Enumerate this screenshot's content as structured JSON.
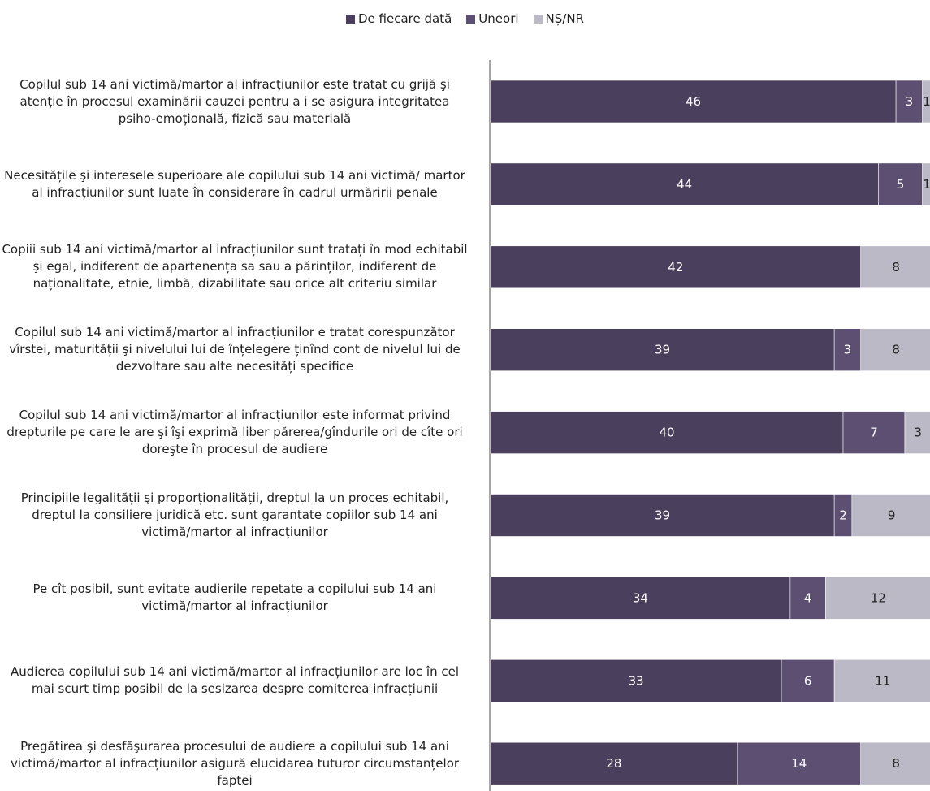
{
  "chart_data": {
    "type": "bar",
    "orientation": "horizontal",
    "stacked": true,
    "legend_position": "top",
    "categories": [
      "Copilul sub 14 ani victimă/martor al infracțiunilor este tratat cu grijă şi atenție în procesul examinării cauzei pentru a i se asigura integritatea psiho-emoțională, fizică sau materială",
      "Necesitățile şi interesele superioare ale copilului sub 14 ani victimă/ martor al infracțiunilor sunt luate în considerare în cadrul urmăririi penale",
      "Copiii sub 14 ani victimă/martor al infracțiunilor sunt tratați în mod echitabil şi egal, indiferent de apartenența sa sau a părinților, indiferent de naționalitate, etnie, limbă, dizabilitate sau orice alt criteriu similar",
      "Copilul sub 14 ani victimă/martor al infracțiunilor e tratat corespunzător vîrstei, maturității şi nivelului lui de înțelegere ținînd cont de nivelul lui de dezvoltare sau alte necesități specifice",
      "Copilul sub 14 ani victimă/martor al infracțiunilor este informat privind drepturile pe care le are şi îşi exprimă liber părerea/gîndurile ori de cîte ori doreşte în procesul de audiere",
      "Principiile legalității şi proporționalității, dreptul la un proces echitabil, dreptul la consiliere juridică etc. sunt garantate copiilor sub 14 ani victimă/martor al infracțiunilor",
      "Pe cît posibil, sunt evitate audierile repetate a copilului sub 14 ani victimă/martor al infracțiunilor",
      "Audierea copilului sub 14 ani victimă/martor al infracțiunilor are loc în cel mai scurt timp posibil de la sesizarea despre comiterea infracțiunii",
      "Pregătirea şi desfăşurarea procesului de audiere a copilului sub 14 ani victimă/martor al infracțiunilor asigură elucidarea tuturor circumstanțelor faptei"
    ],
    "series": [
      {
        "name": "De fiecare dată",
        "color": "#4b3f5e",
        "values": [
          46,
          44,
          42,
          39,
          40,
          39,
          34,
          33,
          28
        ]
      },
      {
        "name": "Uneori",
        "color": "#5c4f72",
        "values": [
          3,
          5,
          0,
          3,
          7,
          2,
          4,
          6,
          14
        ]
      },
      {
        "name": "NȘ/NR",
        "color": "#bcb9c6",
        "values": [
          1,
          1,
          8,
          8,
          3,
          9,
          12,
          11,
          8
        ]
      }
    ],
    "label_colors": [
      "#ffffff",
      "#ffffff",
      "#222222"
    ]
  }
}
